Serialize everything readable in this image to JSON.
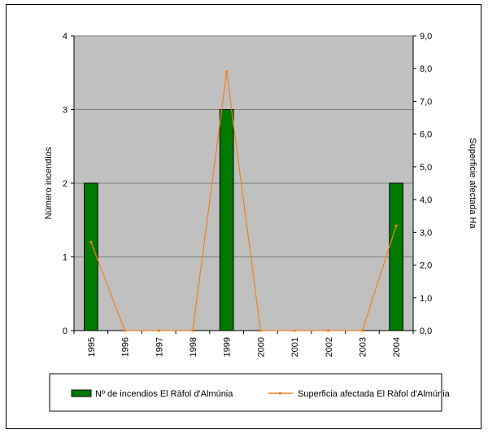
{
  "chart_data": {
    "type": "bar",
    "categories": [
      "1995",
      "1996",
      "1997",
      "1998",
      "1999",
      "2000",
      "2001",
      "2002",
      "2003",
      "2004"
    ],
    "series": [
      {
        "name": "Nº de incendios El Ràfol d'Almúnia",
        "type": "bar",
        "axis": "left",
        "values": [
          2,
          0,
          0,
          0,
          3,
          0,
          0,
          0,
          0,
          2
        ]
      },
      {
        "name": "Superficia afectada El Ràfol d'Almúnia",
        "type": "line",
        "axis": "right",
        "values": [
          2.7,
          0.0,
          0.0,
          0.0,
          7.9,
          0.0,
          0.0,
          0.0,
          0.0,
          3.2
        ]
      }
    ],
    "ylabel": "Número incendios",
    "ylabel_right": "Superficie afectada Ha",
    "ylim": [
      0,
      4
    ],
    "ylim_right": [
      0,
      9
    ],
    "yticks": [
      "0",
      "1",
      "2",
      "3",
      "4"
    ],
    "yticks_right": [
      "0,0",
      "1,0",
      "2,0",
      "3,0",
      "4,0",
      "5,0",
      "6,0",
      "7,0",
      "8,0",
      "9,0"
    ],
    "grid": true,
    "legend_position": "bottom",
    "colors": {
      "bar_fill": "#007A00",
      "line": "#F08020",
      "plot_background": "#C0C0C0",
      "gridline": "#808080"
    }
  }
}
